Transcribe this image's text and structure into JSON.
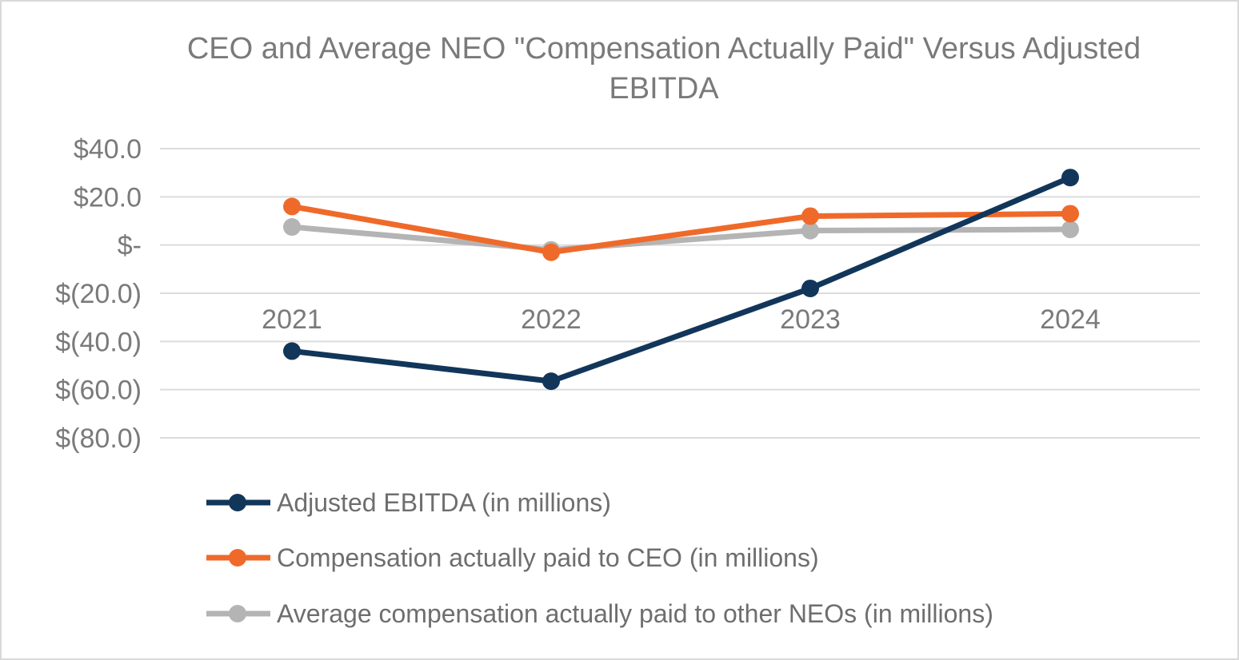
{
  "chart_data": {
    "type": "line",
    "title": "CEO and Average NEO \"Compensation Actually Paid\" Versus Adjusted EBITDA",
    "categories": [
      "2021",
      "2022",
      "2023",
      "2024"
    ],
    "ylim": [
      -80,
      40
    ],
    "yticks": [
      {
        "value": 40,
        "label": "$40.0"
      },
      {
        "value": 20,
        "label": "$20.0"
      },
      {
        "value": 0,
        "label": "$-"
      },
      {
        "value": -20,
        "label": "$(20.0)"
      },
      {
        "value": -40,
        "label": "$(40.0)"
      },
      {
        "value": -60,
        "label": "$(60.0)"
      },
      {
        "value": -80,
        "label": "$(80.0)"
      }
    ],
    "grid": true,
    "legend_position": "bottom",
    "series": [
      {
        "name": "Adjusted EBITDA (in millions)",
        "color": "#12365a",
        "values": [
          -44,
          -56.5,
          -18,
          28
        ]
      },
      {
        "name": "Compensation actually paid to CEO (in millions)",
        "color": "#ef6a2a",
        "values": [
          16,
          -3,
          12,
          13
        ]
      },
      {
        "name": "Average compensation actually paid to other NEOs (in millions)",
        "color": "#b4b4b4",
        "values": [
          7.5,
          -2,
          6,
          6.5
        ]
      }
    ]
  }
}
